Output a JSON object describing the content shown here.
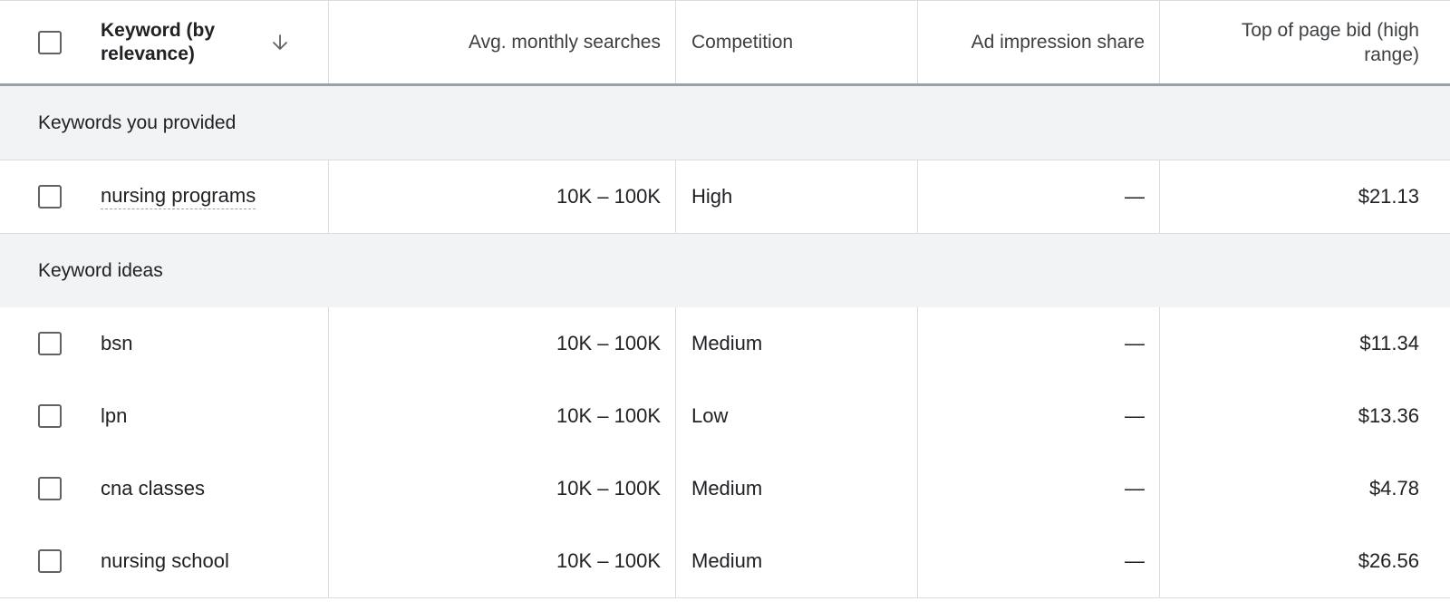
{
  "header": {
    "keyword_label": "Keyword (by relevance)",
    "keyword_line1": "Keyword (by",
    "keyword_line2": "relevance)",
    "sort_icon": "arrow-down-icon",
    "avg_label": "Avg. monthly searches",
    "competition_label": "Competition",
    "impression_label": "Ad impression share",
    "bid_line1": "Top of page bid (high",
    "bid_line2": "range)"
  },
  "groups": [
    {
      "label": "Keywords you provided",
      "rows": [
        {
          "keyword": "nursing programs",
          "avg": "10K – 100K",
          "competition": "High",
          "impression": "—",
          "bid": "$21.13"
        }
      ]
    },
    {
      "label": "Keyword ideas",
      "rows": [
        {
          "keyword": "bsn",
          "avg": "10K – 100K",
          "competition": "Medium",
          "impression": "—",
          "bid": "$11.34"
        },
        {
          "keyword": "lpn",
          "avg": "10K – 100K",
          "competition": "Low",
          "impression": "—",
          "bid": "$13.36"
        },
        {
          "keyword": "cna classes",
          "avg": "10K – 100K",
          "competition": "Medium",
          "impression": "—",
          "bid": "$4.78"
        },
        {
          "keyword": "nursing school",
          "avg": "10K – 100K",
          "competition": "Medium",
          "impression": "—",
          "bid": "$26.56"
        }
      ]
    }
  ]
}
